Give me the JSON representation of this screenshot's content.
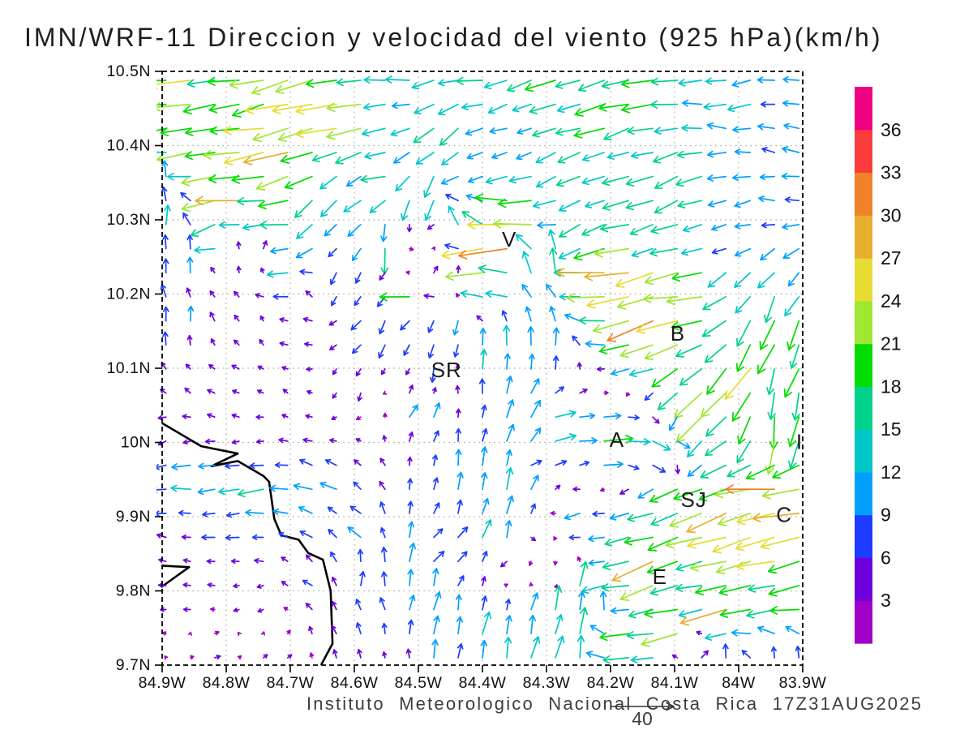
{
  "title": "IMN/WRF-11 Direccion y velocidad del viento (925 hPa)(km/h)",
  "caption": "Instituto Meteorologico Nacional Costa Rica 17Z31AUG2025",
  "chart_data": {
    "type": "quiver",
    "model": "IMN/WRF-11",
    "variable": "Direccion y velocidad del viento",
    "level": "925 hPa",
    "units": "km/h",
    "valid_time": "17Z31AUG2025",
    "lon_range": [
      -84.9,
      -83.9
    ],
    "lat_range": [
      9.7,
      10.5
    ],
    "x_axis": {
      "ticks": [
        "84.9W",
        "84.8W",
        "84.7W",
        "84.6W",
        "84.5W",
        "84.4W",
        "84.3W",
        "84.2W",
        "84.1W",
        "84W",
        "83.9W"
      ]
    },
    "y_axis": {
      "ticks": [
        "10.5N",
        "10.4N",
        "10.3N",
        "10.2N",
        "10.1N",
        "10N",
        "9.9N",
        "9.8N",
        "9.7N"
      ]
    },
    "grid": {
      "cols": 27,
      "rows": 25
    },
    "reference_vector": {
      "value": 40,
      "label": "40"
    },
    "colorbar": {
      "levels": [
        3,
        6,
        9,
        12,
        15,
        18,
        21,
        24,
        27,
        30,
        33,
        36
      ],
      "colors": [
        "#A000C8",
        "#6E00DC",
        "#1E3CFF",
        "#00A0FF",
        "#00C8C8",
        "#00D28C",
        "#00DC00",
        "#A0E632",
        "#E6DC32",
        "#E6AF2D",
        "#F08228",
        "#FA3C3C",
        "#F00082"
      ]
    },
    "stations": [
      {
        "label": "V",
        "lon": -84.358,
        "lat": 10.274
      },
      {
        "label": "B",
        "lon": -84.095,
        "lat": 10.147
      },
      {
        "label": "SR",
        "lon": -84.456,
        "lat": 10.098
      },
      {
        "label": "A",
        "lon": -84.19,
        "lat": 10.004
      },
      {
        "label": "I",
        "lon": -83.905,
        "lat": 10.001
      },
      {
        "label": "SJ",
        "lon": -84.07,
        "lat": 9.923
      },
      {
        "label": "C",
        "lon": -83.929,
        "lat": 9.903
      },
      {
        "label": "E",
        "lon": -84.123,
        "lat": 9.819
      }
    ],
    "coastlines": [
      [
        [
          -84.9,
          10.026
        ],
        [
          -84.839,
          9.995
        ],
        [
          -84.782,
          9.985
        ],
        [
          -84.823,
          9.968
        ],
        [
          -84.782,
          9.975
        ],
        [
          -84.742,
          9.955
        ],
        [
          -84.733,
          9.947
        ],
        [
          -84.725,
          9.897
        ],
        [
          -84.714,
          9.875
        ],
        [
          -84.687,
          9.869
        ],
        [
          -84.672,
          9.851
        ],
        [
          -84.649,
          9.842
        ],
        [
          -84.637,
          9.8
        ],
        [
          -84.634,
          9.729
        ],
        [
          -84.652,
          9.7
        ]
      ],
      [
        [
          -84.9,
          9.834
        ],
        [
          -84.858,
          9.832
        ],
        [
          -84.9,
          9.806
        ]
      ]
    ],
    "control_points": [
      [
        -84.88,
        10.48,
        -23,
        -4
      ],
      [
        -84.7,
        10.47,
        -24,
        -5
      ],
      [
        -84.55,
        10.48,
        -13,
        0
      ],
      [
        -84.42,
        10.48,
        -14,
        -2
      ],
      [
        -84.3,
        10.47,
        -17,
        -6
      ],
      [
        -84.15,
        10.48,
        -18,
        -4
      ],
      [
        -83.98,
        10.48,
        -13,
        -2
      ],
      [
        -84.88,
        10.42,
        -22,
        -6
      ],
      [
        -84.62,
        10.44,
        -26,
        -3
      ],
      [
        -84.45,
        10.42,
        -11,
        -9
      ],
      [
        -84.33,
        10.43,
        -8,
        -3
      ],
      [
        -84.2,
        10.43,
        -16,
        -6
      ],
      [
        -84.05,
        10.43,
        -14,
        2
      ],
      [
        -83.93,
        10.45,
        -9,
        1
      ],
      [
        -83.92,
        10.4,
        -9,
        2
      ],
      [
        -83.93,
        10.33,
        -9,
        1
      ],
      [
        -84.85,
        10.38,
        -22,
        -5
      ],
      [
        -84.72,
        10.38,
        -25,
        -6
      ],
      [
        -84.55,
        10.37,
        -15,
        -4
      ],
      [
        -84.42,
        10.36,
        -10,
        -5
      ],
      [
        -84.25,
        10.36,
        -14,
        -7
      ],
      [
        -84.1,
        10.36,
        -15,
        -6
      ],
      [
        -84.6,
        10.33,
        -9,
        -8
      ],
      [
        -84.49,
        10.34,
        -3,
        -15
      ],
      [
        -84.67,
        10.31,
        -8,
        -12
      ],
      [
        -84.88,
        10.35,
        1,
        12
      ],
      [
        -84.88,
        10.3,
        1,
        11
      ],
      [
        -84.8,
        10.33,
        -27,
        -3
      ],
      [
        -84.7,
        10.31,
        -22,
        -2
      ],
      [
        -84.82,
        10.29,
        -18,
        -7
      ],
      [
        -84.76,
        10.25,
        4,
        6
      ],
      [
        -84.7,
        10.22,
        -15,
        -3
      ],
      [
        -84.54,
        10.27,
        -2,
        -16
      ],
      [
        -84.52,
        10.27,
        3,
        0
      ],
      [
        -84.5,
        10.24,
        7,
        2
      ],
      [
        -84.42,
        10.3,
        -3,
        14
      ],
      [
        -84.38,
        10.27,
        -30,
        -2
      ],
      [
        -84.35,
        10.3,
        -25,
        -1
      ],
      [
        -84.4,
        10.24,
        -27,
        -2
      ],
      [
        -84.5,
        10.21,
        -22,
        -2
      ],
      [
        -84.46,
        10.22,
        8,
        7
      ],
      [
        -84.3,
        10.24,
        0,
        17
      ],
      [
        -84.2,
        10.22,
        -28,
        -3
      ],
      [
        -84.25,
        10.28,
        -12,
        -6
      ],
      [
        -84.13,
        10.28,
        -14,
        -5
      ],
      [
        -84.1,
        10.2,
        -25,
        -4
      ],
      [
        -84.0,
        10.27,
        -9,
        -4
      ],
      [
        -83.97,
        10.3,
        -9,
        -2
      ],
      [
        -84.82,
        10.22,
        -2,
        4
      ],
      [
        -84.75,
        10.15,
        -2,
        3
      ],
      [
        -84.85,
        10.1,
        -3,
        3
      ],
      [
        -84.68,
        10.2,
        -3,
        5
      ],
      [
        -84.7,
        10.06,
        -3,
        2
      ],
      [
        -84.87,
        10.25,
        0,
        11
      ],
      [
        -84.87,
        10.15,
        1,
        9
      ],
      [
        -84.8,
        10.04,
        -4,
        1
      ],
      [
        -84.62,
        10.22,
        -2,
        -7
      ],
      [
        -84.55,
        10.16,
        -5,
        -9
      ],
      [
        -84.45,
        10.15,
        -2,
        -10
      ],
      [
        -84.48,
        10.12,
        -2,
        -9
      ],
      [
        -84.6,
        10.08,
        -2,
        -5
      ],
      [
        -84.4,
        10.1,
        1,
        12
      ],
      [
        -84.35,
        10.03,
        4,
        13
      ],
      [
        -84.5,
        10.04,
        5,
        8
      ],
      [
        -84.3,
        10.13,
        1,
        11
      ],
      [
        -84.38,
        10.12,
        2,
        12
      ],
      [
        -84.13,
        10.17,
        -28,
        -8
      ],
      [
        -84.05,
        10.14,
        -20,
        -6
      ],
      [
        -83.95,
        10.17,
        -6,
        -18
      ],
      [
        -84.0,
        10.1,
        -14,
        -20
      ],
      [
        -83.95,
        10.08,
        -3,
        -19
      ],
      [
        -83.93,
        10.02,
        -2,
        -20
      ],
      [
        -84.05,
        10.05,
        -16,
        -14
      ],
      [
        -83.97,
        10.22,
        -8,
        -10
      ],
      [
        -84.28,
        10.02,
        14,
        1
      ],
      [
        -84.2,
        10.0,
        16,
        0
      ],
      [
        -84.12,
        9.99,
        12,
        -4
      ],
      [
        -84.3,
        9.97,
        8,
        3
      ],
      [
        -84.1,
        9.93,
        -16,
        -6
      ],
      [
        -84.03,
        9.9,
        -22,
        -9
      ],
      [
        -83.93,
        9.93,
        -29,
        -2
      ],
      [
        -83.96,
        9.86,
        -25,
        -7
      ],
      [
        -84.16,
        9.88,
        -14,
        -4
      ],
      [
        -84.14,
        9.84,
        -26,
        -9
      ],
      [
        -84.25,
        9.9,
        -10,
        -2
      ],
      [
        -84.2,
        9.81,
        -17,
        -3
      ],
      [
        -84.02,
        9.77,
        -24,
        -10
      ],
      [
        -83.94,
        9.78,
        -20,
        -3
      ],
      [
        -84.1,
        9.75,
        -23,
        -4
      ],
      [
        -83.96,
        9.82,
        -18,
        -2
      ],
      [
        -84.18,
        9.73,
        -18,
        -2
      ],
      [
        -84.07,
        9.72,
        5,
        4
      ],
      [
        -83.93,
        9.71,
        0,
        8
      ],
      [
        -84.02,
        9.71,
        0,
        8
      ],
      [
        -84.42,
        9.95,
        2,
        11
      ],
      [
        -84.35,
        9.92,
        2,
        13
      ],
      [
        -84.49,
        9.84,
        2,
        16
      ],
      [
        -84.47,
        9.85,
        9,
        2
      ],
      [
        -84.38,
        9.87,
        4,
        13
      ],
      [
        -84.32,
        9.87,
        2,
        -2
      ],
      [
        -84.3,
        9.85,
        -1,
        -3
      ],
      [
        -84.35,
        9.84,
        -4,
        -5
      ],
      [
        -84.28,
        9.82,
        1,
        -3
      ],
      [
        -84.25,
        9.8,
        4,
        14
      ],
      [
        -84.3,
        9.76,
        4,
        15
      ],
      [
        -84.4,
        9.74,
        3,
        12
      ],
      [
        -84.5,
        9.76,
        2,
        11
      ],
      [
        -84.33,
        9.71,
        3,
        12
      ],
      [
        -84.45,
        9.71,
        2,
        10
      ],
      [
        -84.26,
        9.74,
        5,
        15
      ],
      [
        -84.23,
        9.78,
        4,
        14
      ],
      [
        -84.85,
        9.96,
        -13,
        -1
      ],
      [
        -84.75,
        9.94,
        -14,
        -2
      ],
      [
        -84.65,
        9.92,
        -11,
        3
      ],
      [
        -84.6,
        9.87,
        -7,
        6
      ],
      [
        -84.8,
        9.9,
        -8,
        -1
      ],
      [
        -84.87,
        9.99,
        -4,
        -2
      ],
      [
        -84.75,
        10.0,
        -4,
        -1
      ],
      [
        -84.63,
        9.89,
        -5,
        5
      ],
      [
        -84.6,
        9.82,
        1,
        9
      ],
      [
        -84.57,
        9.77,
        -2,
        8
      ],
      [
        -84.85,
        9.8,
        -4,
        0
      ],
      [
        -84.75,
        9.78,
        -4,
        -1
      ],
      [
        -84.82,
        9.72,
        3,
        1
      ],
      [
        -84.72,
        9.72,
        3,
        2
      ],
      [
        -84.87,
        9.86,
        -5,
        1
      ],
      [
        -84.65,
        9.8,
        -5,
        3
      ],
      [
        -84.55,
        9.71,
        -1,
        4
      ],
      [
        -84.6,
        9.75,
        -3,
        6
      ]
    ]
  }
}
